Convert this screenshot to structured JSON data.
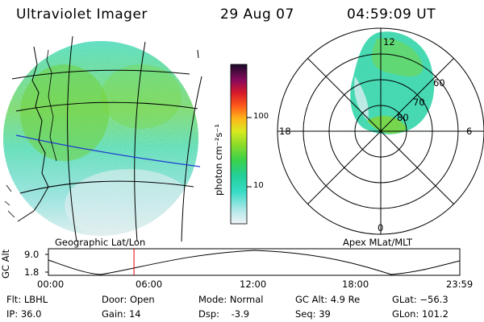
{
  "header": {
    "instrument": "Ultraviolet Imager",
    "date": "29 Aug 07",
    "time": "04:59:09 UT"
  },
  "colorbar": {
    "label": "photon cm⁻²s⁻¹",
    "ticks": [
      "100",
      "10"
    ],
    "colors": [
      "#e6f0f5",
      "#cfe6ee",
      "#9fe2e0",
      "#3cdcc4",
      "#22d3a8",
      "#2ad070",
      "#66d13b",
      "#a6e12a",
      "#d3ea22",
      "#f0d018",
      "#ffa21a",
      "#ff5a1a",
      "#e01a1a",
      "#c01040",
      "#8c0a5a",
      "#5a0a6a",
      "#2a0a3a"
    ]
  },
  "left_panel": {
    "title": "Geographic Lat/Lon"
  },
  "right_panel": {
    "title": "Apex MLat/MLT",
    "mlt_labels": {
      "top": "12",
      "left": "18",
      "right": "6",
      "bottom": "0"
    },
    "lat_labels": [
      "60",
      "70",
      "80"
    ]
  },
  "timeline": {
    "ylabel": "GC Alt",
    "ymax": "9.0",
    "ymin": "1.8",
    "xticks": [
      "00:00",
      "06:00",
      "12:00",
      "18:00",
      "23:59"
    ],
    "current_time_hours": 4.99
  },
  "info": {
    "filter": "Flt: LBHL",
    "ip": "IP: 36.0",
    "door": "Door: Open",
    "gain": "Gain: 14",
    "mode": "Mode: Normal",
    "dsp": "Dsp:    -3.9",
    "gc_alt": "GC Alt: 4.9 Re",
    "seq": "Seq: 39",
    "glat": "GLat: −56.3",
    "glon": "GLon: 101.2"
  }
}
